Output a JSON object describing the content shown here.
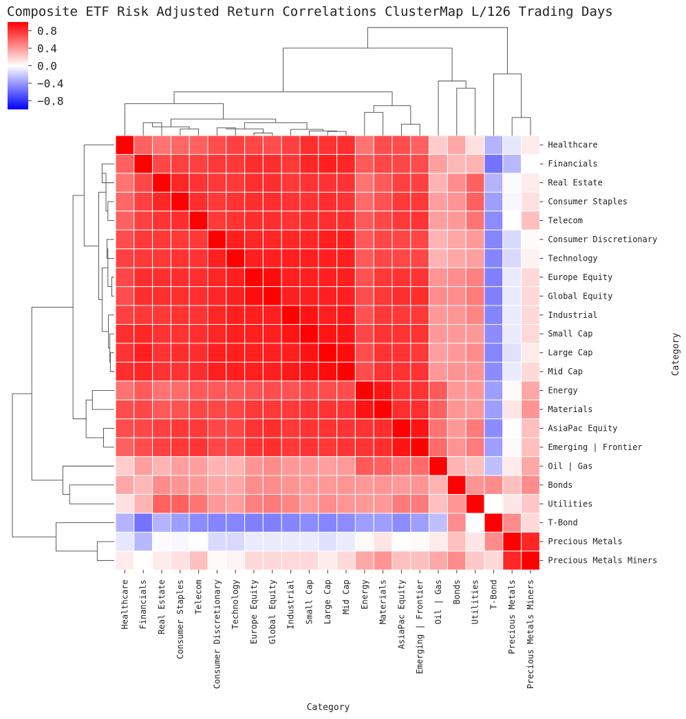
{
  "chart_data": {
    "type": "heatmap",
    "title": "Composite ETF Risk Adjusted Return Correlations ClusterMap L/126 Trading Days",
    "xlabel": "Category",
    "ylabel": "Category",
    "colormap": "bwr",
    "vmin": -1,
    "vmax": 1,
    "colorbar_ticks": [
      0.8,
      0.4,
      0.0,
      -0.4,
      -0.8
    ],
    "colorbar_tick_labels": [
      "0.8",
      "0.4",
      "0.0",
      "−0.4",
      "−0.8"
    ],
    "labels": [
      "Healthcare",
      "Financials",
      "Real Estate",
      "Consumer Staples",
      "Telecom",
      "Consumer Discretionary",
      "Technology",
      "Europe Equity",
      "Global Equity",
      "Industrial",
      "Small Cap",
      "Large Cap",
      "Mid Cap",
      "Energy",
      "Materials",
      "AsiaPac Equity",
      "Emerging | Frontier",
      "Oil | Gas",
      "Bonds",
      "Utilities",
      "T-Bond",
      "Precious Metals",
      "Precious Metals Miners"
    ],
    "values": [
      [
        1.0,
        0.62,
        0.55,
        0.6,
        0.62,
        0.7,
        0.75,
        0.72,
        0.7,
        0.75,
        0.82,
        0.8,
        0.82,
        0.55,
        0.7,
        0.7,
        0.62,
        0.2,
        0.35,
        0.12,
        -0.3,
        -0.1,
        0.08
      ],
      [
        0.62,
        1.0,
        0.72,
        0.75,
        0.75,
        0.78,
        0.78,
        0.82,
        0.82,
        0.78,
        0.85,
        0.88,
        0.85,
        0.65,
        0.72,
        0.72,
        0.7,
        0.38,
        0.28,
        0.3,
        -0.55,
        -0.28,
        0.0
      ],
      [
        0.55,
        0.72,
        1.0,
        0.85,
        0.8,
        0.78,
        0.78,
        0.82,
        0.82,
        0.78,
        0.8,
        0.8,
        0.8,
        0.55,
        0.65,
        0.75,
        0.75,
        0.3,
        0.45,
        0.62,
        -0.3,
        -0.02,
        0.08
      ],
      [
        0.6,
        0.75,
        0.85,
        1.0,
        0.82,
        0.78,
        0.8,
        0.82,
        0.82,
        0.8,
        0.8,
        0.82,
        0.8,
        0.58,
        0.68,
        0.78,
        0.78,
        0.38,
        0.42,
        0.62,
        -0.38,
        -0.03,
        0.12
      ],
      [
        0.62,
        0.75,
        0.8,
        0.82,
        1.0,
        0.78,
        0.8,
        0.82,
        0.82,
        0.8,
        0.82,
        0.82,
        0.82,
        0.65,
        0.72,
        0.78,
        0.8,
        0.38,
        0.4,
        0.55,
        -0.45,
        0.0,
        0.25
      ],
      [
        0.7,
        0.78,
        0.78,
        0.78,
        0.78,
        1.0,
        0.88,
        0.85,
        0.85,
        0.85,
        0.85,
        0.88,
        0.88,
        0.65,
        0.72,
        0.72,
        0.72,
        0.3,
        0.35,
        0.4,
        -0.48,
        -0.15,
        0.02
      ],
      [
        0.75,
        0.78,
        0.78,
        0.8,
        0.8,
        0.88,
        1.0,
        0.88,
        0.88,
        0.88,
        0.88,
        0.88,
        0.88,
        0.65,
        0.72,
        0.72,
        0.72,
        0.3,
        0.35,
        0.38,
        -0.48,
        -0.15,
        0.05
      ],
      [
        0.72,
        0.82,
        0.82,
        0.82,
        0.82,
        0.85,
        0.88,
        1.0,
        0.95,
        0.88,
        0.88,
        0.88,
        0.88,
        0.68,
        0.78,
        0.8,
        0.8,
        0.42,
        0.45,
        0.5,
        -0.5,
        -0.08,
        0.15
      ],
      [
        0.7,
        0.82,
        0.82,
        0.82,
        0.82,
        0.85,
        0.88,
        0.95,
        1.0,
        0.88,
        0.88,
        0.88,
        0.88,
        0.7,
        0.78,
        0.82,
        0.82,
        0.45,
        0.45,
        0.52,
        -0.5,
        -0.08,
        0.15
      ],
      [
        0.75,
        0.78,
        0.78,
        0.8,
        0.8,
        0.85,
        0.88,
        0.88,
        0.88,
        1.0,
        0.92,
        0.88,
        0.9,
        0.68,
        0.78,
        0.78,
        0.78,
        0.4,
        0.42,
        0.48,
        -0.48,
        -0.08,
        0.15
      ],
      [
        0.82,
        0.85,
        0.8,
        0.8,
        0.82,
        0.85,
        0.88,
        0.88,
        0.88,
        0.92,
        1.0,
        0.92,
        0.92,
        0.72,
        0.8,
        0.8,
        0.8,
        0.4,
        0.4,
        0.4,
        -0.45,
        -0.08,
        0.15
      ],
      [
        0.8,
        0.88,
        0.8,
        0.82,
        0.82,
        0.88,
        0.88,
        0.88,
        0.88,
        0.88,
        0.92,
        1.0,
        0.95,
        0.7,
        0.8,
        0.8,
        0.78,
        0.38,
        0.4,
        0.45,
        -0.48,
        -0.12,
        0.08
      ],
      [
        0.82,
        0.85,
        0.8,
        0.8,
        0.82,
        0.88,
        0.88,
        0.88,
        0.88,
        0.9,
        0.92,
        0.95,
        1.0,
        0.7,
        0.8,
        0.8,
        0.8,
        0.4,
        0.42,
        0.42,
        -0.45,
        -0.08,
        0.15
      ],
      [
        0.55,
        0.65,
        0.55,
        0.58,
        0.65,
        0.65,
        0.65,
        0.68,
        0.7,
        0.68,
        0.72,
        0.7,
        0.7,
        1.0,
        0.92,
        0.8,
        0.8,
        0.65,
        0.4,
        0.4,
        -0.38,
        0.02,
        0.35
      ],
      [
        0.7,
        0.72,
        0.65,
        0.68,
        0.72,
        0.72,
        0.72,
        0.78,
        0.78,
        0.78,
        0.8,
        0.8,
        0.8,
        0.92,
        1.0,
        0.82,
        0.82,
        0.62,
        0.42,
        0.4,
        -0.38,
        0.1,
        0.42
      ],
      [
        0.7,
        0.72,
        0.75,
        0.78,
        0.78,
        0.72,
        0.72,
        0.8,
        0.82,
        0.78,
        0.8,
        0.8,
        0.8,
        0.8,
        0.82,
        1.0,
        0.92,
        0.55,
        0.4,
        0.52,
        -0.45,
        0.0,
        0.25
      ],
      [
        0.62,
        0.7,
        0.75,
        0.78,
        0.8,
        0.72,
        0.72,
        0.8,
        0.82,
        0.78,
        0.8,
        0.78,
        0.8,
        0.8,
        0.82,
        0.92,
        1.0,
        0.58,
        0.42,
        0.52,
        -0.38,
        0.02,
        0.25
      ],
      [
        0.2,
        0.38,
        0.3,
        0.38,
        0.38,
        0.3,
        0.3,
        0.42,
        0.45,
        0.4,
        0.4,
        0.38,
        0.4,
        0.65,
        0.62,
        0.55,
        0.58,
        1.0,
        0.3,
        0.25,
        -0.25,
        0.08,
        0.35
      ],
      [
        0.35,
        0.28,
        0.45,
        0.42,
        0.4,
        0.35,
        0.35,
        0.45,
        0.45,
        0.42,
        0.4,
        0.4,
        0.42,
        0.4,
        0.42,
        0.4,
        0.42,
        0.3,
        1.0,
        0.42,
        0.45,
        0.25,
        0.45
      ],
      [
        0.12,
        0.3,
        0.62,
        0.62,
        0.55,
        0.4,
        0.38,
        0.5,
        0.52,
        0.48,
        0.4,
        0.45,
        0.42,
        0.4,
        0.4,
        0.52,
        0.52,
        0.25,
        0.42,
        1.0,
        0.0,
        0.1,
        0.22
      ],
      [
        -0.3,
        -0.55,
        -0.3,
        -0.38,
        -0.45,
        -0.48,
        -0.48,
        -0.5,
        -0.5,
        -0.48,
        -0.45,
        -0.48,
        -0.45,
        -0.38,
        -0.38,
        -0.45,
        -0.38,
        -0.25,
        0.45,
        0.0,
        1.0,
        0.45,
        0.15
      ],
      [
        -0.1,
        -0.28,
        -0.02,
        -0.03,
        0.0,
        -0.15,
        -0.15,
        -0.08,
        -0.08,
        -0.08,
        -0.08,
        -0.12,
        -0.08,
        0.02,
        0.1,
        0.0,
        0.02,
        0.08,
        0.25,
        0.1,
        0.45,
        1.0,
        0.85
      ],
      [
        0.08,
        0.0,
        0.08,
        0.12,
        0.25,
        0.02,
        0.05,
        0.15,
        0.15,
        0.15,
        0.15,
        0.08,
        0.15,
        0.35,
        0.42,
        0.25,
        0.25,
        0.35,
        0.45,
        0.22,
        0.15,
        0.85,
        1.0
      ]
    ],
    "dendrogram": [
      {
        "a": 13,
        "b": 14,
        "height": 0.45
      },
      {
        "a": 15,
        "b": 16,
        "height": 0.22
      },
      {
        "a": 23,
        "b": 24,
        "height": 0.58
      },
      {
        "a": 1,
        "b": 2,
        "height": 0.25
      },
      {
        "a": 3,
        "b": 4,
        "height": 0.13
      },
      {
        "a": 26,
        "b": 27,
        "height": 0.17
      },
      {
        "a": 5,
        "b": 6,
        "height": 0.15
      },
      {
        "a": 7,
        "b": 8,
        "height": 0.05
      },
      {
        "a": 29,
        "b": 30,
        "height": 0.13
      },
      {
        "a": 11,
        "b": 12,
        "height": 0.08
      },
      {
        "a": 10,
        "b": 32,
        "height": 0.09
      },
      {
        "a": 9,
        "b": 33,
        "height": 0.12
      },
      {
        "a": 31,
        "b": 34,
        "height": 0.25
      },
      {
        "a": 28,
        "b": 35,
        "height": 0.32
      },
      {
        "a": 0,
        "b": 36,
        "height": 0.62
      },
      {
        "a": 18,
        "b": 19,
        "height": 0.92
      },
      {
        "a": 17,
        "b": 38,
        "height": 1.06
      },
      {
        "a": 25,
        "b": 37,
        "height": 0.85
      },
      {
        "a": 39,
        "b": 40,
        "height": 1.7
      },
      {
        "a": 21,
        "b": 22,
        "height": 0.35
      },
      {
        "a": 20,
        "b": 42,
        "height": 1.2
      },
      {
        "a": 41,
        "b": 43,
        "height": 2.1
      }
    ]
  }
}
